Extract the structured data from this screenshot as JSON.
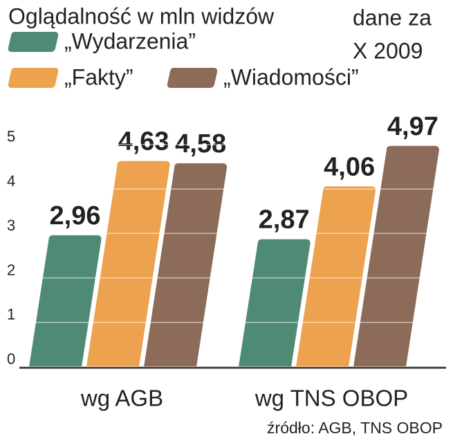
{
  "chart_data": {
    "type": "bar",
    "title": "Oglądalność w mln widzów",
    "subtitle": [
      "dane za",
      "X 2009"
    ],
    "categories": [
      "wg AGB",
      "wg TNS OBOP"
    ],
    "series": [
      {
        "name": "„Wydarzenia”",
        "color": "#4f8a74",
        "values": [
          2.96,
          2.87
        ],
        "value_labels": [
          "2,96",
          "2,87"
        ]
      },
      {
        "name": "„Fakty”",
        "color": "#eda24f",
        "values": [
          4.63,
          4.06
        ],
        "value_labels": [
          "4,63",
          "4,06"
        ]
      },
      {
        "name": "„Wiadomości”",
        "color": "#8d6b59",
        "values": [
          4.58,
          4.97
        ],
        "value_labels": [
          "4,58",
          "4,97"
        ]
      }
    ],
    "ylim": [
      0,
      5.2
    ],
    "yticks": [
      0,
      1,
      2,
      3,
      4,
      5
    ],
    "grid": true,
    "source": "źródło: AGB, TNS OBOP"
  }
}
